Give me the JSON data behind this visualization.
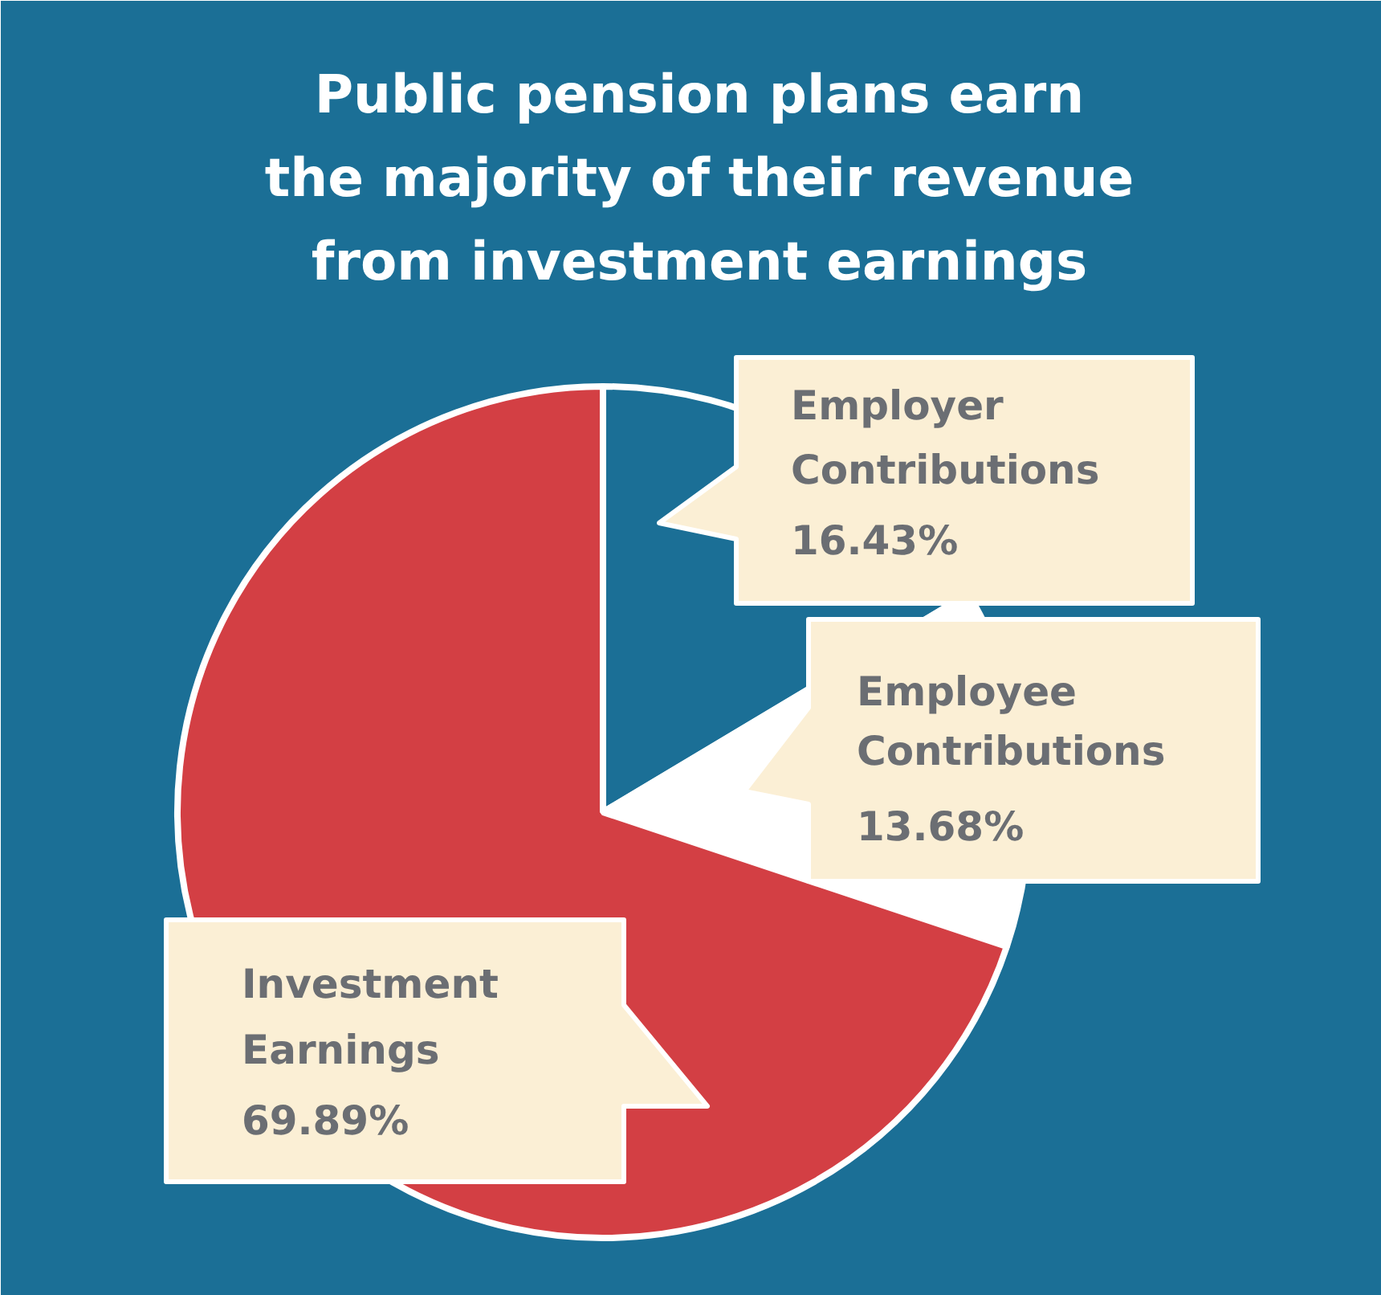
{
  "chart_data": {
    "type": "pie",
    "title": "Public pension plans earn\nthe majority of their revenue\nfrom investment earnings",
    "categories": [
      "Employer Contributions",
      "Employee Contributions",
      "Investment Earnings"
    ],
    "values": [
      16.43,
      13.68,
      69.89
    ],
    "value_labels": [
      "16.43%",
      "13.68%",
      "69.89%"
    ],
    "colors": [
      "#1b6f96",
      "#ffffff",
      "#d33f44"
    ]
  }
}
